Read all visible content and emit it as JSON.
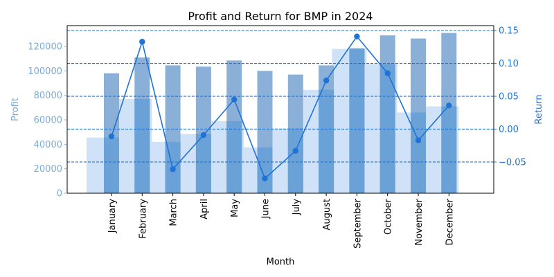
{
  "chart_data": {
    "type": "bar+line",
    "title": "Profit and Return for BMP in 2024",
    "xlabel": "Month",
    "ylabel_left": "Profit",
    "ylabel_right": "Return",
    "categories": [
      "January",
      "February",
      "March",
      "April",
      "May",
      "June",
      "July",
      "August",
      "September",
      "October",
      "November",
      "December"
    ],
    "profit": [
      98000,
      111000,
      104500,
      103500,
      108500,
      100000,
      97000,
      104500,
      118500,
      129000,
      126500,
      131000
    ],
    "background_area": [
      45500,
      77000,
      42000,
      48500,
      59000,
      37500,
      53000,
      84500,
      118000,
      105500,
      66000,
      71000
    ],
    "return": [
      -0.011,
      0.133,
      -0.061,
      -0.009,
      0.045,
      -0.075,
      -0.033,
      0.074,
      0.141,
      0.085,
      -0.017,
      0.036
    ],
    "left_ylim": [
      0,
      137000
    ],
    "right_ylim": [
      -0.0975,
      0.1575
    ],
    "left_ticks": [
      0,
      20000,
      40000,
      60000,
      80000,
      100000,
      120000
    ],
    "left_tick_labels": [
      "0",
      "20000",
      "40000",
      "60000",
      "80000",
      "100000",
      "120000"
    ],
    "right_ticks": [
      -0.05,
      0.0,
      0.05,
      0.1,
      0.15
    ],
    "right_tick_labels": [
      "−0.05",
      "0.00",
      "0.05",
      "0.10",
      "0.15"
    ],
    "colors": {
      "profit_bar": "#8bb0d7",
      "background_area": "#d0e2f7",
      "overlap_bar": "#6aa2d8",
      "return_line": "#1f72d6",
      "left_axis": "#7aaad6",
      "right_axis": "#1f72d6"
    }
  }
}
